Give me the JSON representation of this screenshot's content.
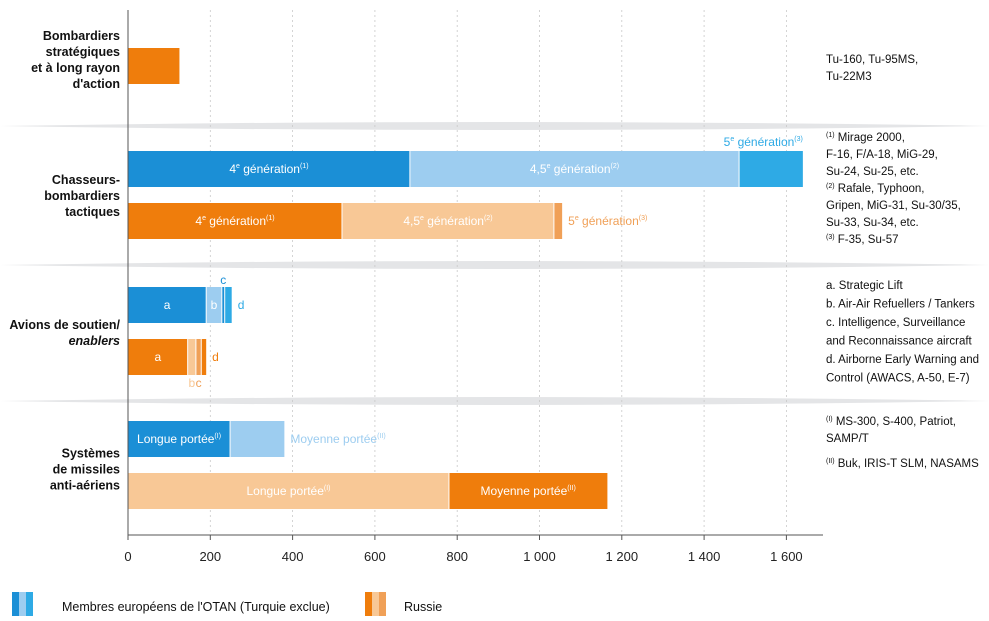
{
  "colors": {
    "otan_dark": "#1b8fd6",
    "otan_light": "#9dcdf0",
    "otan_mid": "#2eaae5",
    "rus_dark": "#ef7d0c",
    "rus_light": "#f8c896",
    "rus_mid": "#f0a057",
    "band": "#e4e5e7",
    "grid": "#c9c9c9",
    "axis": "#555555"
  },
  "chart_data": {
    "type": "bar",
    "orientation": "horizontal",
    "stacked": true,
    "xlim": [
      0,
      1700
    ],
    "x_ticks": [
      0,
      200,
      400,
      600,
      800,
      1000,
      1200,
      1400,
      1600
    ],
    "x_tick_labels": [
      "0",
      "200",
      "400",
      "600",
      "800",
      "1 000",
      "1 200",
      "1 400",
      "1 600"
    ],
    "grid": true,
    "legend": {
      "placement": "bottom-left",
      "entries": [
        {
          "label": "Membres européens de l'OTAN (Turquie exclue)",
          "colors": [
            "#1b8fd6",
            "#9dcdf0",
            "#2eaae5"
          ]
        },
        {
          "label": "Russie",
          "colors": [
            "#ef7d0c",
            "#f8c896",
            "#f0a057"
          ]
        }
      ]
    },
    "groups": [
      {
        "label_lines": [
          "Bombardiers",
          "stratégiques",
          "et à long rayon",
          "d'action"
        ],
        "italic_lines": [],
        "notes": [
          {
            "text": "Tu-160, Tu-95MS,"
          },
          {
            "text": "Tu-22M3"
          }
        ],
        "bars": [
          {
            "series": "Russie",
            "segments": [
              {
                "value": 125,
                "color": "#ef7d0c",
                "label": "",
                "label_pos": "none"
              }
            ]
          }
        ]
      },
      {
        "label_lines": [
          "Chasseurs-",
          "bombardiers",
          "tactiques"
        ],
        "italic_lines": [],
        "notes": [
          {
            "sup": "(1)",
            "text": "Mirage 2000,"
          },
          {
            "text": "F-16, F/A-18, MiG-29,"
          },
          {
            "text": "Su-24, Su-25, etc."
          },
          {
            "sup": "(2)",
            "text": "Rafale, Typhoon,"
          },
          {
            "text": "Gripen, MiG-31, Su-30/35,"
          },
          {
            "text": "Su-33, Su-34, etc."
          },
          {
            "sup": "(3)",
            "text": "F-35, Su-57"
          }
        ],
        "bars": [
          {
            "series": "Membres européens de l'OTAN (Turquie exclue)",
            "segments": [
              {
                "value": 685,
                "color": "#1b8fd6",
                "label": "4",
                "label_sup": "e",
                "label_rest": " génération",
                "label_note": "(1)",
                "label_pos": "inside"
              },
              {
                "value": 800,
                "color": "#9dcdf0",
                "label": "4,5",
                "label_sup": "e",
                "label_rest": " génération",
                "label_note": "(2)",
                "label_pos": "inside"
              },
              {
                "value": 155,
                "color": "#2eaae5",
                "label": "5",
                "label_sup": "e",
                "label_rest": " génération",
                "label_note": "(3)",
                "label_pos": "above-end"
              }
            ]
          },
          {
            "series": "Russie",
            "segments": [
              {
                "value": 520,
                "color": "#ef7d0c",
                "label": "4",
                "label_sup": "e",
                "label_rest": " génération",
                "label_note": "(1)",
                "label_pos": "inside"
              },
              {
                "value": 515,
                "color": "#f8c896",
                "label": "4,5",
                "label_sup": "e",
                "label_rest": " génération",
                "label_note": "(2)",
                "label_pos": "inside"
              },
              {
                "value": 20,
                "color": "#f0a057",
                "label": "5",
                "label_sup": "e",
                "label_rest": " génération",
                "label_note": "(3)",
                "label_pos": "after"
              }
            ]
          }
        ]
      },
      {
        "label_lines": [
          "Avions de soutien/",
          "enablers"
        ],
        "italic_lines": [
          1
        ],
        "notes": [
          {
            "text": "a. Strategic Lift"
          },
          {
            "text": "b. Air-Air Refuellers / Tankers"
          },
          {
            "text": "c. Intelligence, Surveillance"
          },
          {
            "text": "and Reconnaissance aircraft"
          },
          {
            "text": "d. Airborne Early Warning and"
          },
          {
            "text": "Control (AWACS, A-50, E-7)"
          }
        ],
        "bars": [
          {
            "series": "Membres européens de l'OTAN (Turquie exclue)",
            "segments": [
              {
                "value": 190,
                "color": "#1b8fd6",
                "label": "a",
                "label_pos": "inside"
              },
              {
                "value": 38,
                "color": "#9dcdf0",
                "label": "b",
                "label_pos": "inside"
              },
              {
                "value": 7,
                "color": "#1b8fd6",
                "label": "c",
                "label_pos": "above"
              },
              {
                "value": 17,
                "color": "#2eaae5",
                "label": "d",
                "label_pos": "after"
              }
            ]
          },
          {
            "series": "Russie",
            "segments": [
              {
                "value": 145,
                "color": "#ef7d0c",
                "label": "a",
                "label_pos": "inside"
              },
              {
                "value": 20,
                "color": "#f8c896",
                "label": "b",
                "label_pos": "below"
              },
              {
                "value": 13,
                "color": "#f0a057",
                "label": "c",
                "label_pos": "below"
              },
              {
                "value": 12,
                "color": "#ef7d0c",
                "label": "d",
                "label_pos": "after"
              }
            ]
          }
        ]
      },
      {
        "label_lines": [
          "Systèmes",
          "de missiles",
          "anti-aériens"
        ],
        "italic_lines": [],
        "notes": [
          {
            "sup": "(I)",
            "text": "MS-300, S-400, Patriot,"
          },
          {
            "text": "SAMP/T"
          },
          {
            "gap": true
          },
          {
            "sup": "(II)",
            "text": "Buk, IRIS-T SLM, NASAMS"
          }
        ],
        "bars": [
          {
            "series": "Membres européens de l'OTAN (Turquie exclue)",
            "segments": [
              {
                "value": 248,
                "color": "#1b8fd6",
                "label": "Longue portée",
                "label_note": "(I)",
                "label_pos": "inside"
              },
              {
                "value": 132,
                "color": "#9dcdf0",
                "label": "Moyenne portée",
                "label_note": "(II)",
                "label_pos": "after"
              }
            ]
          },
          {
            "series": "Russie",
            "segments": [
              {
                "value": 780,
                "color": "#f8c896",
                "label": "Longue portée",
                "label_note": "(I)",
                "label_pos": "inside"
              },
              {
                "value": 385,
                "color": "#ef7d0c",
                "label": "Moyenne portée",
                "label_note": "(II)",
                "label_pos": "inside"
              }
            ]
          }
        ]
      }
    ]
  }
}
